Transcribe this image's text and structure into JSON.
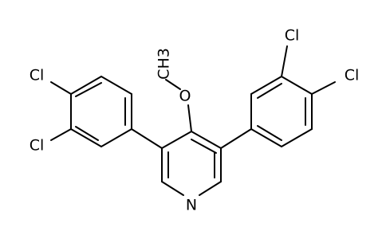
{
  "atoms": [
    {
      "label": "N"
    },
    {
      "label": "O"
    },
    {
      "label": "CH3"
    },
    {
      "label": "Cl"
    },
    {
      "label": "Cl"
    },
    {
      "label": "Cl"
    },
    {
      "label": "Cl"
    }
  ]
}
